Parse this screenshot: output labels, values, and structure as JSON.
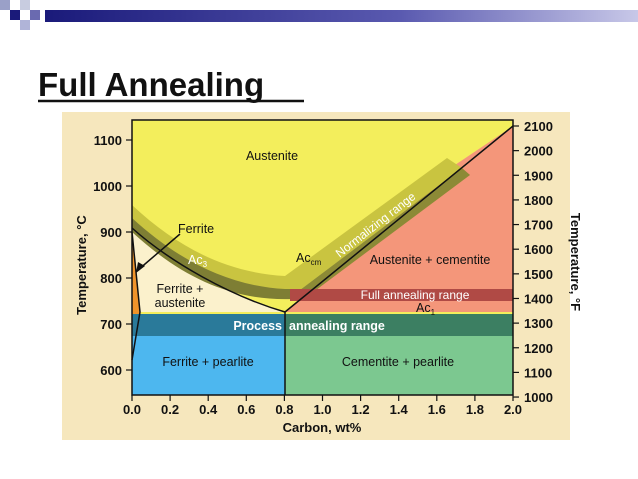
{
  "header": {
    "title": "Full Annealing"
  },
  "diagram": {
    "y_left_label": "Temperature, °C",
    "y_left_ticks": [
      "1100",
      "1000",
      "900",
      "800",
      "700",
      "600"
    ],
    "y_right_label": "Temperature, °F",
    "y_right_ticks": [
      "2100",
      "2000",
      "1900",
      "1800",
      "1700",
      "1600",
      "1500",
      "1400",
      "1300",
      "1200",
      "1100",
      "1000"
    ],
    "x_label": "Carbon, wt%",
    "x_ticks": [
      "0.0",
      "0.2",
      "0.4",
      "0.6",
      "0.8",
      "1.0",
      "1.2",
      "1.4",
      "1.6",
      "1.8",
      "2.0"
    ],
    "regions": {
      "austenite": "Austenite",
      "ferrite": "Ferrite",
      "ferrite_austenite": [
        "Ferrite +",
        "austenite"
      ],
      "austenite_cementite": "Austenite + cementite",
      "ferrite_pearlite": "Ferrite + pearlite",
      "cementite_pearlite": "Cementite + pearlite"
    },
    "lines": {
      "ac3": {
        "base": "Ac",
        "sub": "3"
      },
      "acm": {
        "base": "Ac",
        "sub": "cm"
      },
      "ac1": {
        "base": "Ac",
        "sub": "1"
      }
    },
    "ranges": {
      "normalizing": "Normalizing range",
      "full_annealing": "Full annealing range",
      "process_annealing": [
        "Process",
        "annealing range"
      ]
    }
  }
}
